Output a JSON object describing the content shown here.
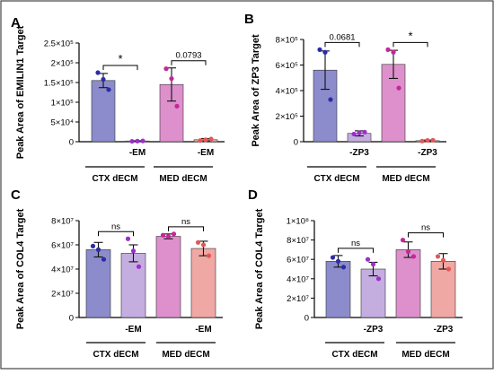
{
  "chart_data": [
    {
      "type": "bar",
      "panel_letter": "A",
      "ylabel": "Peak Area of EMILIN1 Target",
      "ylim": [
        0,
        250000
      ],
      "yticks": [
        0,
        50000,
        100000,
        150000,
        200000,
        250000
      ],
      "ytick_labels": [
        "0",
        "5×10⁴",
        "1×10⁵",
        "1.5×10⁵",
        "2×10⁵",
        "2.5×10⁵"
      ],
      "categories": [
        "",
        "-EM",
        "",
        "-EM"
      ],
      "values": [
        155000,
        1500,
        145000,
        5000
      ],
      "errors": [
        18000,
        1000,
        42000,
        3000
      ],
      "points": [
        [
          175000,
          158000,
          132000
        ],
        [
          1000,
          1500,
          2000
        ],
        [
          185000,
          160000,
          90000
        ],
        [
          3000,
          5000,
          7000
        ]
      ],
      "bar_colors": [
        "#8c8ccc",
        "#c4aee0",
        "#dd90cc",
        "#f0a8a4"
      ],
      "dot_colors": [
        "#2c2ca8",
        "#9b30c8",
        "#c42898",
        "#e05858"
      ],
      "comparisons": [
        {
          "from": 0,
          "to": 1,
          "label": "*"
        },
        {
          "from": 2,
          "to": 3,
          "label": "0.0793"
        }
      ],
      "groups": [
        "CTX dECM",
        "MED dECM"
      ]
    },
    {
      "type": "bar",
      "panel_letter": "B",
      "ylabel": "Peak Area of ZP3 Target",
      "ylim": [
        0,
        800000
      ],
      "yticks": [
        0,
        200000,
        400000,
        600000,
        800000
      ],
      "ytick_labels": [
        "0",
        "2×10⁵",
        "4×10⁵",
        "6×10⁵",
        "8×10⁵"
      ],
      "categories": [
        "",
        "-ZP3",
        "",
        "-ZP3"
      ],
      "values": [
        560000,
        65000,
        605000,
        8000
      ],
      "errors": [
        150000,
        20000,
        110000,
        5000
      ],
      "points": [
        [
          720000,
          700000,
          330000
        ],
        [
          60000,
          70000,
          75000
        ],
        [
          720000,
          700000,
          420000
        ],
        [
          5000,
          10000,
          12000
        ]
      ],
      "bar_colors": [
        "#8c8ccc",
        "#c4aee0",
        "#dd90cc",
        "#f0a8a4"
      ],
      "dot_colors": [
        "#2c2ca8",
        "#9b30c8",
        "#c42898",
        "#e05858"
      ],
      "comparisons": [
        {
          "from": 0,
          "to": 1,
          "label": "0.0681"
        },
        {
          "from": 2,
          "to": 3,
          "label": "*"
        }
      ],
      "groups": [
        "CTX dECM",
        "MED dECM"
      ]
    },
    {
      "type": "bar",
      "panel_letter": "C",
      "ylabel": "Peak Area of COL4 Target",
      "ylim": [
        0,
        80000000
      ],
      "yticks": [
        0,
        20000000,
        40000000,
        60000000,
        80000000
      ],
      "ytick_labels": [
        "0",
        "2×10⁷",
        "4×10⁷",
        "6×10⁷",
        "8×10⁷"
      ],
      "categories": [
        "",
        "-EM",
        "",
        "-EM"
      ],
      "values": [
        56000000,
        53000000,
        67000000,
        57000000
      ],
      "errors": [
        6000000,
        7000000,
        2000000,
        6000000
      ],
      "points": [
        [
          59000000,
          56000000,
          48000000
        ],
        [
          65000000,
          55000000,
          42000000
        ],
        [
          68000000,
          67000000,
          69000000
        ],
        [
          62000000,
          60000000,
          51000000
        ]
      ],
      "bar_colors": [
        "#8c8ccc",
        "#c4aee0",
        "#dd90cc",
        "#f0a8a4"
      ],
      "dot_colors": [
        "#2c2ca8",
        "#9b30c8",
        "#c42898",
        "#e05858"
      ],
      "comparisons": [
        {
          "from": 0,
          "to": 1,
          "label": "ns"
        },
        {
          "from": 2,
          "to": 3,
          "label": "ns"
        }
      ],
      "groups": [
        "CTX dECM",
        "MED dECM"
      ]
    },
    {
      "type": "bar",
      "panel_letter": "D",
      "ylabel": "Peak Area of COL4 Target",
      "ylim": [
        0,
        100000000
      ],
      "yticks": [
        0,
        20000000,
        40000000,
        60000000,
        80000000,
        100000000
      ],
      "ytick_labels": [
        "0",
        "2×10⁷",
        "4×10⁷",
        "6×10⁷",
        "8×10⁷",
        "1×10⁸"
      ],
      "categories": [
        "",
        "-ZP3",
        "",
        "-ZP3"
      ],
      "values": [
        58000000,
        50000000,
        70000000,
        58000000
      ],
      "errors": [
        6000000,
        7000000,
        8000000,
        8000000
      ],
      "points": [
        [
          62000000,
          58000000,
          52000000
        ],
        [
          60000000,
          55000000,
          40000000
        ],
        [
          80000000,
          68000000,
          63000000
        ],
        [
          63000000,
          59000000,
          50000000
        ]
      ],
      "bar_colors": [
        "#8c8ccc",
        "#c4aee0",
        "#dd90cc",
        "#f0a8a4"
      ],
      "dot_colors": [
        "#2c2ca8",
        "#9b30c8",
        "#c42898",
        "#e05858"
      ],
      "comparisons": [
        {
          "from": 0,
          "to": 1,
          "label": "ns"
        },
        {
          "from": 2,
          "to": 3,
          "label": "ns"
        }
      ],
      "groups": [
        "CTX dECM",
        "MED dECM"
      ]
    }
  ]
}
